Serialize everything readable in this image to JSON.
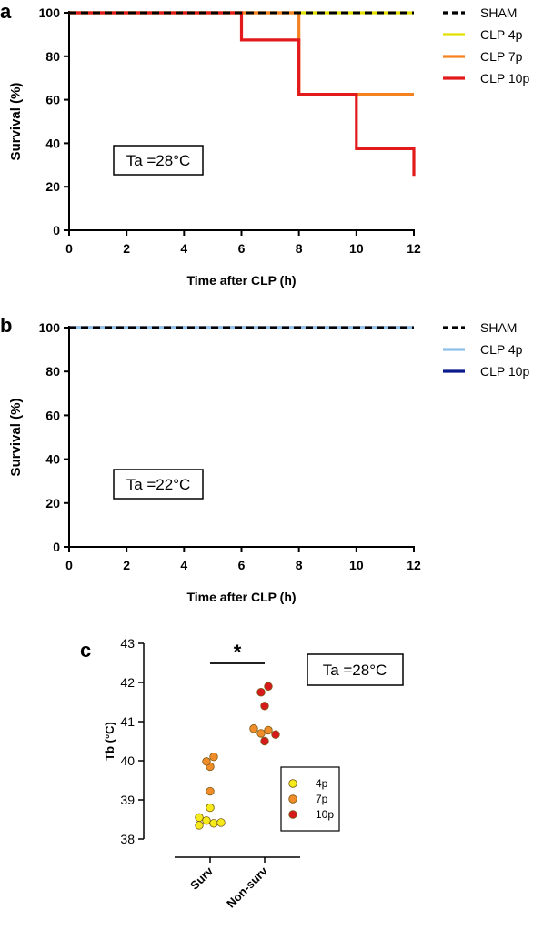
{
  "chart_data": [
    {
      "panel": "a",
      "type": "line",
      "step": true,
      "xlabel": "Time after CLP (h)",
      "ylabel": "Survival (%)",
      "xlim": [
        0,
        12
      ],
      "ylim": [
        0,
        100
      ],
      "xticks": [
        0,
        2,
        4,
        6,
        8,
        10,
        12
      ],
      "yticks": [
        0,
        20,
        40,
        60,
        80,
        100
      ],
      "annotation": "Ta =28°C",
      "legend_position": "right",
      "series": [
        {
          "name": "CLP 4p",
          "color": "#e3e000",
          "dash": false,
          "x": [
            0,
            12
          ],
          "y": [
            100,
            100
          ]
        },
        {
          "name": "CLP 7p",
          "color": "#f58220",
          "dash": false,
          "x": [
            0,
            8,
            12
          ],
          "y": [
            100,
            62.5,
            62.5
          ]
        },
        {
          "name": "CLP 10p",
          "color": "#e21a1c",
          "dash": false,
          "x": [
            0,
            6,
            8,
            10,
            12
          ],
          "y": [
            100,
            87.5,
            62.5,
            37.5,
            25
          ]
        },
        {
          "name": "SHAM",
          "color": "#000000",
          "dash": true,
          "x": [
            0,
            12
          ],
          "y": [
            100,
            100
          ]
        }
      ],
      "legend_order": [
        "SHAM",
        "CLP 4p",
        "CLP 7p",
        "CLP 10p"
      ]
    },
    {
      "panel": "b",
      "type": "line",
      "step": true,
      "xlabel": "Time after CLP (h)",
      "ylabel": "Survival (%)",
      "xlim": [
        0,
        12
      ],
      "ylim": [
        0,
        100
      ],
      "xticks": [
        0,
        2,
        4,
        6,
        8,
        10,
        12
      ],
      "yticks": [
        0,
        20,
        40,
        60,
        80,
        100
      ],
      "annotation": "Ta =22°C",
      "legend_position": "right",
      "series": [
        {
          "name": "CLP 10p",
          "color": "#0b1a8c",
          "dash": false,
          "x": [
            0,
            12
          ],
          "y": [
            100,
            100
          ]
        },
        {
          "name": "CLP 4p",
          "color": "#8fc0ec",
          "dash": false,
          "x": [
            0,
            12
          ],
          "y": [
            100,
            100
          ]
        },
        {
          "name": "SHAM",
          "color": "#000000",
          "dash": true,
          "x": [
            0,
            12
          ],
          "y": [
            100,
            100
          ]
        }
      ],
      "legend_order": [
        "SHAM",
        "CLP 4p",
        "CLP 10p"
      ]
    },
    {
      "panel": "c",
      "type": "scatter",
      "ylabel": "Tb (°C)",
      "ylim": [
        38,
        43
      ],
      "yticks": [
        38,
        39,
        40,
        41,
        42,
        43
      ],
      "categories": [
        "Surv",
        "Non-surv"
      ],
      "annotation": "Ta =28°C",
      "significance": "*",
      "legend_position": "right",
      "legend": [
        {
          "name": "4p",
          "color": "#f5ea1c"
        },
        {
          "name": "7p",
          "color": "#f08c2a"
        },
        {
          "name": "10p",
          "color": "#d7191c"
        }
      ],
      "points": [
        {
          "category": "Surv",
          "group": "4p",
          "y": 38.35,
          "offset": -1.5
        },
        {
          "category": "Surv",
          "group": "4p",
          "y": 38.55,
          "offset": -1.5
        },
        {
          "category": "Surv",
          "group": "4p",
          "y": 38.47,
          "offset": -0.5
        },
        {
          "category": "Surv",
          "group": "4p",
          "y": 38.8,
          "offset": 0
        },
        {
          "category": "Surv",
          "group": "4p",
          "y": 38.4,
          "offset": 0.5
        },
        {
          "category": "Surv",
          "group": "4p",
          "y": 38.42,
          "offset": 1.5
        },
        {
          "category": "Surv",
          "group": "7p",
          "y": 39.22,
          "offset": 0
        },
        {
          "category": "Surv",
          "group": "7p",
          "y": 39.85,
          "offset": 0
        },
        {
          "category": "Surv",
          "group": "7p",
          "y": 39.98,
          "offset": -0.5
        },
        {
          "category": "Surv",
          "group": "7p",
          "y": 40.1,
          "offset": 0.5
        },
        {
          "category": "Non-surv",
          "group": "7p",
          "y": 40.82,
          "offset": -1.5
        },
        {
          "category": "Non-surv",
          "group": "7p",
          "y": 40.7,
          "offset": -0.5
        },
        {
          "category": "Non-surv",
          "group": "7p",
          "y": 40.78,
          "offset": 0.5
        },
        {
          "category": "Non-surv",
          "group": "10p",
          "y": 40.67,
          "offset": 1.5
        },
        {
          "category": "Non-surv",
          "group": "10p",
          "y": 40.5,
          "offset": 0
        },
        {
          "category": "Non-surv",
          "group": "10p",
          "y": 41.4,
          "offset": 0
        },
        {
          "category": "Non-surv",
          "group": "10p",
          "y": 41.75,
          "offset": -0.5
        },
        {
          "category": "Non-surv",
          "group": "10p",
          "y": 41.9,
          "offset": 0.5
        }
      ]
    }
  ]
}
